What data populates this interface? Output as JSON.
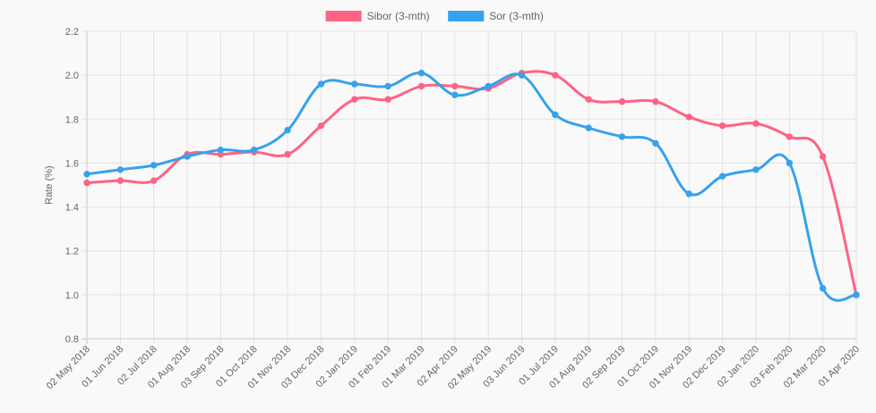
{
  "chart_data": {
    "type": "line",
    "title": "",
    "xlabel": "",
    "ylabel": "Rate (%)",
    "ylim": [
      0.8,
      2.2
    ],
    "y_ticks": [
      0.8,
      1.0,
      1.2,
      1.4,
      1.6,
      1.8,
      2.0,
      2.2
    ],
    "y_tick_labels": [
      "0.8",
      "1.0",
      "1.2",
      "1.4",
      "1.6",
      "1.8",
      "2.0",
      "2.2"
    ],
    "grid": true,
    "legend_position": "top-center",
    "categories": [
      "02 May 2018",
      "01 Jun 2018",
      "02 Jul 2018",
      "01 Aug 2018",
      "03 Sep 2018",
      "01 Oct 2018",
      "01 Nov 2018",
      "03 Dec 2018",
      "02 Jan 2019",
      "01 Feb 2019",
      "01 Mar 2019",
      "02 Apr 2019",
      "02 May 2019",
      "03 Jun 2019",
      "01 Jul 2019",
      "01 Aug 2019",
      "02 Sep 2019",
      "01 Oct 2019",
      "01 Nov 2019",
      "02 Dec 2019",
      "02 Jan 2020",
      "03 Feb 2020",
      "02 Mar 2020",
      "01 Apr 2020"
    ],
    "series": [
      {
        "name": "Sibor (3-mth)",
        "color": "#ff6384",
        "values": [
          1.51,
          1.52,
          1.52,
          1.64,
          1.64,
          1.65,
          1.64,
          1.77,
          1.89,
          1.89,
          1.95,
          1.95,
          1.94,
          2.01,
          2.0,
          1.89,
          1.88,
          1.88,
          1.81,
          1.77,
          1.78,
          1.72,
          1.63,
          1.0
        ]
      },
      {
        "name": "Sor (3-mth)",
        "color": "#36a2eb",
        "values": [
          1.55,
          1.57,
          1.59,
          1.63,
          1.66,
          1.66,
          1.75,
          1.96,
          1.96,
          1.95,
          2.01,
          1.91,
          1.95,
          2.0,
          1.82,
          1.76,
          1.72,
          1.69,
          1.46,
          1.54,
          1.57,
          1.6,
          1.03,
          1.0
        ]
      }
    ]
  }
}
